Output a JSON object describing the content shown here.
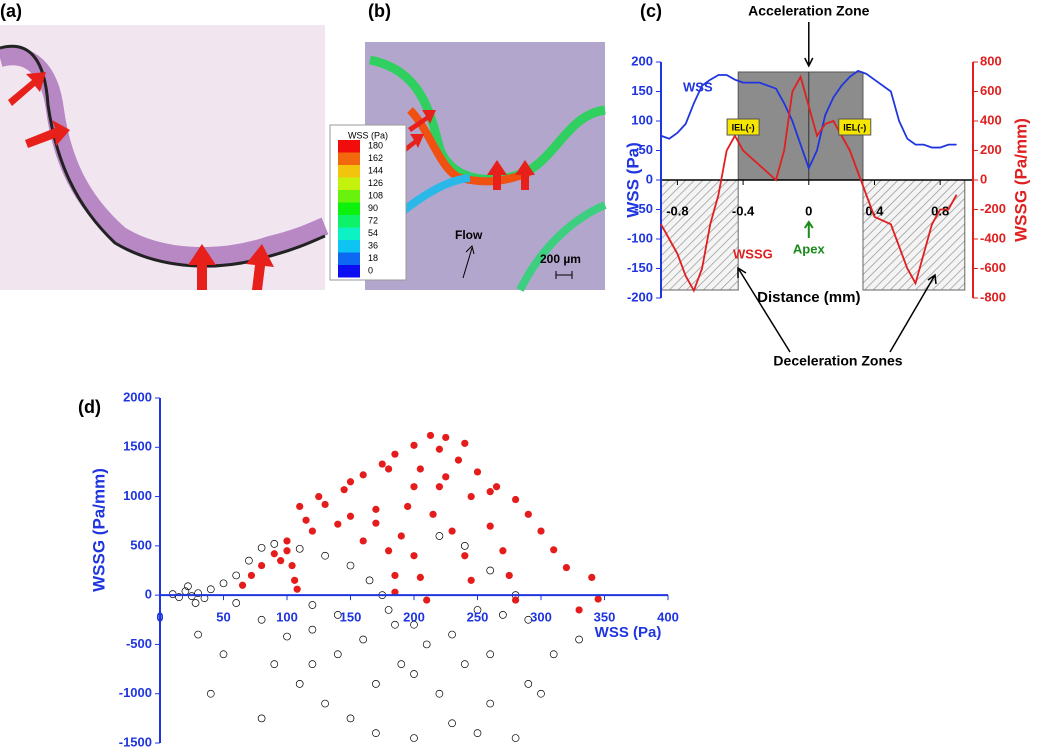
{
  "panels": {
    "a": {
      "label": "(a)"
    },
    "b": {
      "label": "(b)",
      "colorbar": {
        "title": "WSS (Pa)",
        "ticks": [
          180,
          162,
          144,
          126,
          108,
          90,
          72,
          54,
          36,
          18,
          0
        ]
      },
      "flow": "Flow",
      "scale_bar": "200 µm"
    },
    "c": {
      "label": "(c)"
    },
    "d": {
      "label": "(d)"
    }
  },
  "chart_data": [
    {
      "type": "line",
      "xlabel": "Distance (mm)",
      "ylabel": "WSS (Pa)",
      "y2label": "WSSG (Pa/mm)",
      "x": [
        -0.9,
        -0.85,
        -0.8,
        -0.75,
        -0.7,
        -0.65,
        -0.6,
        -0.55,
        -0.5,
        -0.45,
        -0.4,
        -0.3,
        -0.2,
        -0.15,
        -0.1,
        -0.05,
        0,
        0.05,
        0.1,
        0.15,
        0.2,
        0.25,
        0.3,
        0.35,
        0.4,
        0.5,
        0.55,
        0.6,
        0.65,
        0.7,
        0.75,
        0.8,
        0.85,
        0.9
      ],
      "series": [
        {
          "name": "WSS",
          "color": "#1f35e0",
          "values": [
            75,
            70,
            80,
            95,
            130,
            160,
            170,
            178,
            178,
            170,
            165,
            165,
            155,
            130,
            100,
            60,
            20,
            50,
            110,
            140,
            160,
            175,
            185,
            180,
            170,
            150,
            100,
            70,
            60,
            60,
            55,
            55,
            60,
            60
          ]
        },
        {
          "name": "WSSG",
          "color": "#e02020",
          "axis": "y2",
          "values": [
            -300,
            -400,
            -500,
            -650,
            -750,
            -600,
            -300,
            -100,
            200,
            300,
            200,
            100,
            0,
            200,
            600,
            700,
            500,
            300,
            380,
            400,
            300,
            200,
            50,
            -100,
            -250,
            -300,
            -450,
            -600,
            -700,
            -500,
            -300,
            -200,
            -200,
            -100
          ]
        }
      ],
      "xlim": [
        -0.9,
        1.0
      ],
      "xticks": [
        -0.8,
        -0.4,
        0,
        0.4,
        0.8
      ],
      "ylim": [
        -200,
        200
      ],
      "yticks": [
        -200,
        -150,
        -100,
        -50,
        0,
        50,
        100,
        150,
        200
      ],
      "y2lim": [
        -800,
        800
      ],
      "y2ticks": [
        -800,
        -600,
        -400,
        -200,
        0,
        200,
        400,
        600,
        800
      ],
      "acceleration_zone": {
        "text": "Acceleration Zone",
        "x": [
          -0.43,
          0.33
        ]
      },
      "deceleration_zones": {
        "text": "Deceleration Zones",
        "x": [
          [
            -0.9,
            -0.43
          ],
          [
            0.33,
            0.95
          ]
        ]
      },
      "apex": "Apex",
      "iel": [
        "IEL(-)",
        "IEL(-)"
      ]
    },
    {
      "type": "scatter",
      "xlabel": "WSS (Pa)",
      "ylabel": "WSSG (Pa/mm)",
      "xlim": [
        0,
        400
      ],
      "xticks": [
        0,
        50,
        100,
        150,
        200,
        250,
        300,
        350,
        400
      ],
      "ylim": [
        -1500,
        2000
      ],
      "yticks": [
        -1500,
        -1000,
        -500,
        0,
        500,
        1000,
        1500,
        2000
      ],
      "series": [
        {
          "color": "#000000",
          "marker": "open",
          "x": [
            10,
            15,
            20,
            25,
            30,
            35,
            22,
            28,
            40,
            50,
            60,
            70,
            80,
            90,
            110,
            130,
            150,
            165,
            175,
            180,
            185,
            120,
            100,
            80,
            60,
            50,
            40,
            30,
            90,
            110,
            130,
            150,
            170,
            200,
            230,
            260,
            290,
            300,
            310,
            330,
            290,
            270,
            250,
            230,
            210,
            190,
            170,
            140,
            120,
            80,
            280,
            250,
            220,
            200,
            240,
            260,
            280,
            260,
            240,
            220,
            200,
            160,
            140,
            120
          ],
          "values": [
            10,
            -20,
            40,
            -10,
            20,
            -30,
            90,
            -80,
            60,
            120,
            200,
            350,
            480,
            520,
            470,
            400,
            300,
            150,
            0,
            -150,
            -300,
            -350,
            -420,
            -250,
            -80,
            -600,
            -1000,
            -400,
            -700,
            -900,
            -1100,
            -1250,
            -1400,
            -1450,
            -1300,
            -1100,
            -900,
            -1000,
            -600,
            -450,
            -250,
            -200,
            -150,
            -400,
            -500,
            -700,
            -900,
            -600,
            -700,
            -1250,
            -1450,
            -1400,
            -1000,
            -800,
            -700,
            -600,
            0,
            250,
            500,
            600,
            -300,
            -450,
            -200,
            -100
          ]
        },
        {
          "color": "#e51c1c",
          "marker": "filled",
          "x": [
            340,
            345,
            330,
            320,
            310,
            300,
            290,
            280,
            265,
            250,
            235,
            220,
            213,
            225,
            240,
            200,
            185,
            175,
            160,
            145,
            130,
            115,
            100,
            90,
            80,
            72,
            65,
            110,
            125,
            150,
            180,
            205,
            225,
            245,
            260,
            270,
            275,
            280,
            150,
            170,
            195,
            215,
            230,
            240,
            245,
            120,
            140,
            170,
            190,
            200,
            205,
            210,
            160,
            180,
            185,
            185,
            100,
            104,
            106,
            108,
            95,
            220,
            260,
            200
          ],
          "values": [
            180,
            -40,
            -150,
            280,
            460,
            650,
            820,
            970,
            1100,
            1250,
            1370,
            1480,
            1620,
            1600,
            1540,
            1520,
            1430,
            1330,
            1220,
            1070,
            920,
            760,
            550,
            420,
            300,
            200,
            100,
            900,
            1000,
            1150,
            1280,
            1280,
            1200,
            1000,
            700,
            450,
            200,
            -50,
            800,
            870,
            900,
            820,
            650,
            400,
            150,
            650,
            720,
            730,
            600,
            400,
            180,
            -50,
            550,
            450,
            200,
            30,
            450,
            300,
            150,
            60,
            350,
            1100,
            1050,
            1100
          ]
        }
      ]
    }
  ]
}
